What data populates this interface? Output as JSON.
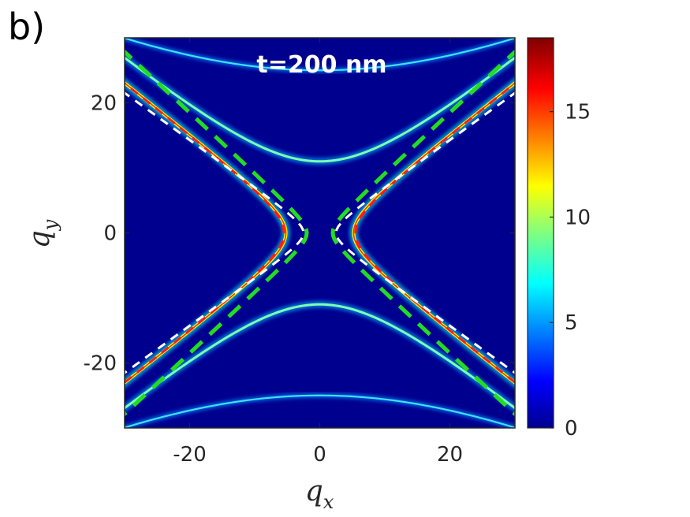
{
  "panel_label": "b)",
  "chart_data": {
    "type": "heatmap",
    "annotation": "t=200 nm",
    "xlabel": "q",
    "xlabel_sub": "x",
    "ylabel": "q",
    "ylabel_sub": "y",
    "xlim": [
      -30,
      30
    ],
    "ylim": [
      -30,
      30
    ],
    "xticks": [
      -20,
      0,
      20
    ],
    "xtick_labels": [
      "-20",
      "0",
      "20"
    ],
    "yticks": [
      -20,
      0,
      20
    ],
    "ytick_labels": [
      "-20",
      "0",
      "20"
    ],
    "colorbar": {
      "colormap": "jet",
      "range": [
        0,
        18.5
      ],
      "ticks": [
        0,
        5,
        10,
        15
      ],
      "tick_labels": [
        "0",
        "5",
        "10",
        "15"
      ]
    },
    "features": {
      "inner_hyperbola_vertex_qx": 5.2,
      "inner_hyperbola_asymptote_slope": 0.78,
      "outer_arc_inner_vertex_qy": 11,
      "outer_arc_outer_vertex_qy": 25,
      "dashed_curves": [
        {
          "color": "#ff1a1a",
          "vertex_qx": 5.5,
          "slope": 0.78
        },
        {
          "color": "#ffffff",
          "vertex_qx": 2.5,
          "slope": 0.72
        },
        {
          "color": "#22dd22",
          "vertex_qx": 2.0,
          "slope": 0.93
        }
      ]
    }
  }
}
